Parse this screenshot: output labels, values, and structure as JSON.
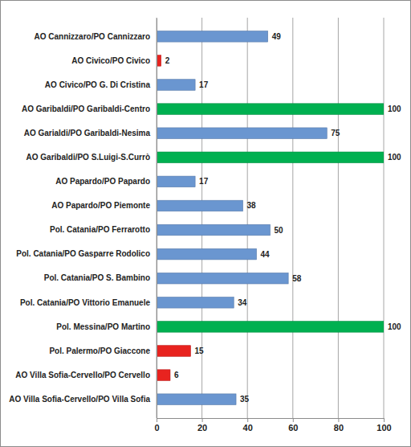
{
  "chart_data": {
    "type": "bar",
    "orientation": "horizontal",
    "categories": [
      "AO Cannizzaro/PO Cannizzaro",
      "AO Civico/PO Civico",
      "AO Civico/PO G. Di Cristina",
      "AO Garibaldi/PO Garibaldi-Centro",
      "AO Garialdi/PO Garibaldi-Nesima",
      "AO Garibaldi/PO S.Luigi-S.Currò",
      "AO Papardo/PO Papardo",
      "AO Papardo/PO Piemonte",
      "Pol. Catania/PO Ferrarotto",
      "Pol. Catania/PO Gasparre Rodolico",
      "Pol. Catania/PO S. Bambino",
      "Pol. Catania/PO Vittorio Emanuele",
      "Pol. Messina/PO Martino",
      "Pol. Palermo/PO Giaccone",
      "AO Villa Sofia-Cervello/PO Cervello",
      "AO Villa Sofia-Cervello/PO Villa Sofia"
    ],
    "values": [
      49,
      2,
      17,
      100,
      75,
      100,
      17,
      38,
      50,
      44,
      58,
      34,
      100,
      15,
      6,
      35
    ],
    "colors": [
      "#6a96d0",
      "#e8231f",
      "#6a96d0",
      "#00b050",
      "#6a96d0",
      "#00b050",
      "#6a96d0",
      "#6a96d0",
      "#6a96d0",
      "#6a96d0",
      "#6a96d0",
      "#6a96d0",
      "#00b050",
      "#e8231f",
      "#e8231f",
      "#6a96d0"
    ],
    "xlim": [
      0,
      100
    ],
    "xticks": [
      0,
      20,
      40,
      60,
      80,
      100
    ],
    "grid": true,
    "data_labels": true
  }
}
